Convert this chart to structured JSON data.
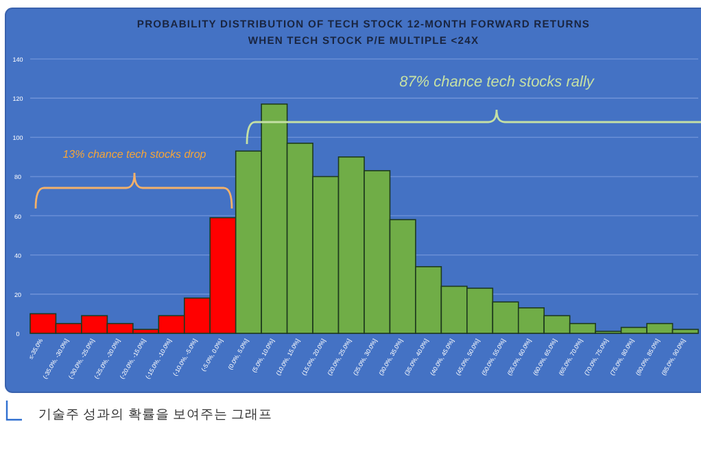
{
  "chart_data": {
    "type": "bar",
    "title": "PROBABILITY DISTRIBUTION OF TECH STOCK 12-MONTH FORWARD RETURNS\nWHEN TECH STOCK P/E MULTIPLE <24X",
    "categories": [
      "≤-35.0%",
      "(-35.0%, -30.0%]",
      "(-30.0%, -25.0%]",
      "(-25.0%, -20.0%]",
      "(-20.0%, -15.0%]",
      "(-15.0%, -10.0%]",
      "(-10.0%, -5.0%]",
      "(-5.0%, 0.0%]",
      "(0.0%, 5.0%]",
      "(5.0%, 10.0%]",
      "(10.0%, 15.0%]",
      "(15.0%, 20.0%]",
      "(20.0%, 25.0%]",
      "(25.0%, 30.0%]",
      "(30.0%, 35.0%]",
      "(35.0%, 40.0%]",
      "(40.0%, 45.0%]",
      "(45.0%, 50.0%]",
      "(50.0%, 55.0%]",
      "(55.0%, 60.0%]",
      "(60.0%, 65.0%]",
      "(65.0%, 70.0%]",
      "(70.0%, 75.0%]",
      "(75.0%, 80.0%]",
      "(80.0%, 85.0%]",
      "(85.0%, 90.0%]"
    ],
    "values": [
      10,
      5,
      9,
      5,
      2,
      9,
      18,
      59,
      93,
      117,
      97,
      80,
      90,
      83,
      58,
      34,
      24,
      23,
      16,
      13,
      9,
      5,
      1,
      3,
      5,
      2
    ],
    "colors": [
      "#ff0000",
      "#ff0000",
      "#ff0000",
      "#ff0000",
      "#ff0000",
      "#ff0000",
      "#ff0000",
      "#ff0000",
      "#70ad47",
      "#70ad47",
      "#70ad47",
      "#70ad47",
      "#70ad47",
      "#70ad47",
      "#70ad47",
      "#70ad47",
      "#70ad47",
      "#70ad47",
      "#70ad47",
      "#70ad47",
      "#70ad47",
      "#70ad47",
      "#70ad47",
      "#70ad47",
      "#70ad47",
      "#70ad47"
    ],
    "ylim": [
      0,
      140
    ],
    "yticks": [
      0,
      20,
      40,
      60,
      80,
      100,
      120,
      140
    ],
    "grid": "y",
    "annotations": [
      "87% chance tech stocks rally",
      "13% chance tech stocks drop",
      "기술주 성과의 확률을 보여주는 그래프"
    ]
  }
}
